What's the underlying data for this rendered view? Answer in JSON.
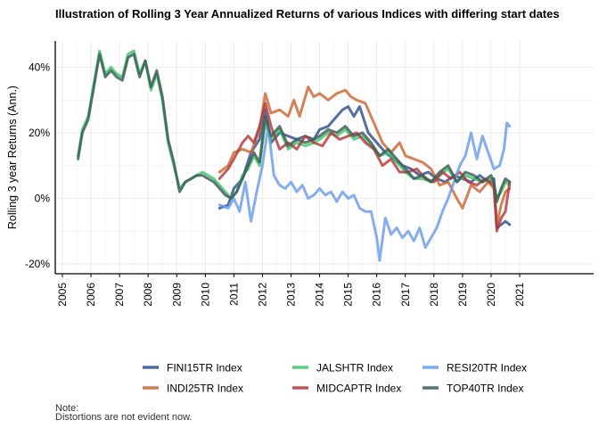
{
  "chart_data": {
    "type": "line",
    "title": "Illustration of Rolling 3 Year Annualized Returns of various Indices with differing start dates",
    "xlabel": "",
    "ylabel": "Rolling 3 year Returns (Ann.)",
    "xlim": [
      2005,
      2021
    ],
    "ylim": [
      -0.23,
      0.48
    ],
    "x_ticks": [
      "2005",
      "2006",
      "2007",
      "2008",
      "2009",
      "2010",
      "2011",
      "2012",
      "2013",
      "2014",
      "2015",
      "2016",
      "2017",
      "2018",
      "2019",
      "2020",
      "2021"
    ],
    "y_ticks": [
      {
        "value": 0.4,
        "label": "40%"
      },
      {
        "value": 0.2,
        "label": "20%"
      },
      {
        "value": 0.0,
        "label": "0%"
      },
      {
        "value": -0.2,
        "label": "-20%"
      }
    ],
    "grid": true,
    "legend_position": "bottom",
    "note": [
      "Note:",
      "Distortions are not evident now."
    ],
    "series": [
      {
        "name": "FINI15TR Index",
        "color": "#2f4f8f",
        "x": [
          2010.5,
          2010.8,
          2011.0,
          2011.3,
          2011.6,
          2011.9,
          2012.1,
          2012.3,
          2012.6,
          2012.9,
          2013.2,
          2013.5,
          2013.8,
          2014.0,
          2014.3,
          2014.6,
          2014.8,
          2015.0,
          2015.2,
          2015.4,
          2015.7,
          2016.0,
          2016.3,
          2016.6,
          2016.9,
          2017.2,
          2017.5,
          2017.8,
          2018.1,
          2018.4,
          2018.7,
          2019.0,
          2019.3,
          2019.6,
          2019.9,
          2020.1,
          2020.2,
          2020.35,
          2020.5,
          2020.65
        ],
        "y": [
          -0.03,
          -0.02,
          0.03,
          0.06,
          0.14,
          0.18,
          0.27,
          0.17,
          0.2,
          0.19,
          0.18,
          0.19,
          0.18,
          0.21,
          0.22,
          0.25,
          0.27,
          0.28,
          0.25,
          0.28,
          0.2,
          0.17,
          0.14,
          0.12,
          0.1,
          0.09,
          0.07,
          0.08,
          0.06,
          0.05,
          0.07,
          0.06,
          0.05,
          0.07,
          0.05,
          0.06,
          -0.09,
          -0.08,
          -0.07,
          -0.08
        ]
      },
      {
        "name": "INDI25TR Index",
        "color": "#cc6633",
        "x": [
          2010.5,
          2010.8,
          2011.0,
          2011.3,
          2011.6,
          2011.9,
          2012.1,
          2012.3,
          2012.6,
          2012.9,
          2013.1,
          2013.3,
          2013.6,
          2013.8,
          2014.0,
          2014.3,
          2014.6,
          2014.9,
          2015.1,
          2015.3,
          2015.6,
          2015.9,
          2016.2,
          2016.5,
          2016.8,
          2017.0,
          2017.3,
          2017.6,
          2017.9,
          2018.2,
          2018.5,
          2018.8,
          2019.0,
          2019.3,
          2019.6,
          2019.9,
          2020.1,
          2020.2,
          2020.35,
          2020.5,
          2020.65
        ],
        "y": [
          0.08,
          0.1,
          0.14,
          0.15,
          0.14,
          0.21,
          0.32,
          0.26,
          0.27,
          0.25,
          0.3,
          0.25,
          0.34,
          0.31,
          0.32,
          0.3,
          0.32,
          0.33,
          0.31,
          0.3,
          0.29,
          0.23,
          0.17,
          0.14,
          0.17,
          0.13,
          0.12,
          0.11,
          0.09,
          0.04,
          0.05,
          0.0,
          -0.03,
          0.04,
          0.02,
          0.05,
          0.03,
          -0.08,
          -0.02,
          0.02,
          0.03
        ]
      },
      {
        "name": "JALSHTR Index",
        "color": "#3fc46a",
        "x": [
          2005.55,
          2005.7,
          2005.9,
          2006.1,
          2006.3,
          2006.5,
          2006.7,
          2006.9,
          2007.1,
          2007.3,
          2007.5,
          2007.7,
          2007.9,
          2008.1,
          2008.3,
          2008.5,
          2008.7,
          2008.9,
          2009.1,
          2009.3,
          2009.5,
          2009.7,
          2009.9,
          2010.1,
          2010.3,
          2010.5,
          2010.7,
          2010.9,
          2011.1,
          2011.3,
          2011.5,
          2011.7,
          2011.9,
          2012.1,
          2012.3,
          2012.6,
          2012.9,
          2013.2,
          2013.5,
          2013.8,
          2014.0,
          2014.3,
          2014.6,
          2014.9,
          2015.2,
          2015.5,
          2015.8,
          2016.1,
          2016.4,
          2016.7,
          2017.0,
          2017.3,
          2017.6,
          2017.9,
          2018.2,
          2018.5,
          2018.8,
          2019.1,
          2019.4,
          2019.7,
          2020.0,
          2020.1,
          2020.2,
          2020.35,
          2020.5,
          2020.65
        ],
        "y": [
          0.13,
          0.21,
          0.25,
          0.35,
          0.45,
          0.38,
          0.4,
          0.38,
          0.37,
          0.44,
          0.45,
          0.38,
          0.42,
          0.33,
          0.38,
          0.3,
          0.17,
          0.1,
          0.03,
          0.05,
          0.06,
          0.07,
          0.08,
          0.07,
          0.06,
          0.04,
          0.02,
          0.0,
          0.02,
          0.07,
          0.09,
          0.13,
          0.1,
          0.23,
          0.18,
          0.21,
          0.15,
          0.17,
          0.16,
          0.17,
          0.18,
          0.2,
          0.19,
          0.21,
          0.18,
          0.19,
          0.16,
          0.13,
          0.14,
          0.11,
          0.08,
          0.06,
          0.06,
          0.05,
          0.07,
          0.09,
          0.05,
          0.07,
          0.06,
          0.05,
          0.06,
          0.04,
          0.0,
          0.02,
          0.05,
          0.04
        ]
      },
      {
        "name": "MIDCAPTR Index",
        "color": "#b03a3a",
        "x": [
          2010.5,
          2010.8,
          2011.0,
          2011.3,
          2011.5,
          2011.7,
          2011.9,
          2012.1,
          2012.3,
          2012.6,
          2012.9,
          2013.2,
          2013.5,
          2013.8,
          2014.1,
          2014.4,
          2014.7,
          2015.0,
          2015.3,
          2015.6,
          2015.9,
          2016.2,
          2016.5,
          2016.8,
          2017.1,
          2017.4,
          2017.7,
          2018.0,
          2018.3,
          2018.6,
          2018.9,
          2019.2,
          2019.5,
          2019.8,
          2020.1,
          2020.2,
          2020.35,
          2020.5,
          2020.65
        ],
        "y": [
          0.06,
          0.09,
          0.12,
          0.17,
          0.19,
          0.17,
          0.22,
          0.29,
          0.22,
          0.15,
          0.17,
          0.15,
          0.19,
          0.17,
          0.16,
          0.2,
          0.18,
          0.19,
          0.2,
          0.17,
          0.15,
          0.1,
          0.12,
          0.08,
          0.08,
          0.09,
          0.06,
          0.05,
          0.08,
          0.06,
          0.08,
          0.05,
          0.04,
          0.06,
          0.04,
          -0.1,
          -0.06,
          -0.04,
          0.05
        ]
      },
      {
        "name": "RESI20TR Index",
        "color": "#6b9be8",
        "x": [
          2010.5,
          2010.8,
          2011.0,
          2011.2,
          2011.4,
          2011.6,
          2011.8,
          2012.0,
          2012.2,
          2012.4,
          2012.6,
          2012.8,
          2013.0,
          2013.2,
          2013.4,
          2013.6,
          2013.8,
          2014.0,
          2014.2,
          2014.4,
          2014.6,
          2014.8,
          2015.0,
          2015.2,
          2015.4,
          2015.6,
          2015.8,
          2016.0,
          2016.1,
          2016.3,
          2016.5,
          2016.7,
          2016.9,
          2017.1,
          2017.3,
          2017.5,
          2017.7,
          2017.9,
          2018.1,
          2018.3,
          2018.5,
          2018.7,
          2018.9,
          2019.1,
          2019.3,
          2019.5,
          2019.7,
          2019.9,
          2020.1,
          2020.3,
          2020.45,
          2020.55,
          2020.65
        ],
        "y": [
          -0.02,
          -0.03,
          0.0,
          -0.04,
          0.05,
          -0.07,
          0.02,
          0.1,
          0.22,
          0.07,
          0.04,
          0.03,
          0.05,
          0.02,
          0.04,
          0.0,
          0.01,
          0.03,
          0.01,
          0.02,
          -0.01,
          0.02,
          0.0,
          0.01,
          -0.03,
          -0.04,
          -0.04,
          -0.12,
          -0.19,
          -0.06,
          -0.11,
          -0.09,
          -0.12,
          -0.1,
          -0.13,
          -0.09,
          -0.15,
          -0.12,
          -0.09,
          -0.04,
          0.0,
          0.05,
          0.1,
          0.13,
          0.2,
          0.12,
          0.19,
          0.14,
          0.09,
          0.1,
          0.15,
          0.23,
          0.22
        ]
      },
      {
        "name": "TOP40TR Index",
        "color": "#3d5a55",
        "x": [
          2005.55,
          2005.7,
          2005.9,
          2006.1,
          2006.3,
          2006.5,
          2006.7,
          2006.9,
          2007.1,
          2007.3,
          2007.5,
          2007.7,
          2007.9,
          2008.1,
          2008.3,
          2008.5,
          2008.7,
          2008.9,
          2009.1,
          2009.3,
          2009.5,
          2009.7,
          2009.9,
          2010.1,
          2010.3,
          2010.5,
          2010.7,
          2010.9,
          2011.1,
          2011.3,
          2011.5,
          2011.7,
          2011.9,
          2012.1,
          2012.3,
          2012.6,
          2012.9,
          2013.2,
          2013.5,
          2013.8,
          2014.0,
          2014.3,
          2014.6,
          2014.9,
          2015.2,
          2015.5,
          2015.8,
          2016.1,
          2016.4,
          2016.7,
          2017.0,
          2017.3,
          2017.6,
          2017.9,
          2018.2,
          2018.5,
          2018.8,
          2019.1,
          2019.4,
          2019.7,
          2020.0,
          2020.1,
          2020.2,
          2020.35,
          2020.5,
          2020.65
        ],
        "y": [
          0.12,
          0.2,
          0.24,
          0.34,
          0.44,
          0.37,
          0.39,
          0.37,
          0.36,
          0.43,
          0.44,
          0.37,
          0.42,
          0.34,
          0.39,
          0.31,
          0.18,
          0.11,
          0.02,
          0.05,
          0.06,
          0.07,
          0.07,
          0.06,
          0.05,
          0.03,
          0.01,
          0.0,
          0.02,
          0.06,
          0.1,
          0.14,
          0.11,
          0.25,
          0.19,
          0.22,
          0.16,
          0.18,
          0.17,
          0.18,
          0.19,
          0.21,
          0.2,
          0.22,
          0.19,
          0.2,
          0.17,
          0.13,
          0.15,
          0.12,
          0.09,
          0.06,
          0.07,
          0.05,
          0.08,
          0.1,
          0.05,
          0.08,
          0.07,
          0.05,
          0.07,
          0.05,
          -0.01,
          0.03,
          0.06,
          0.05
        ]
      }
    ]
  }
}
